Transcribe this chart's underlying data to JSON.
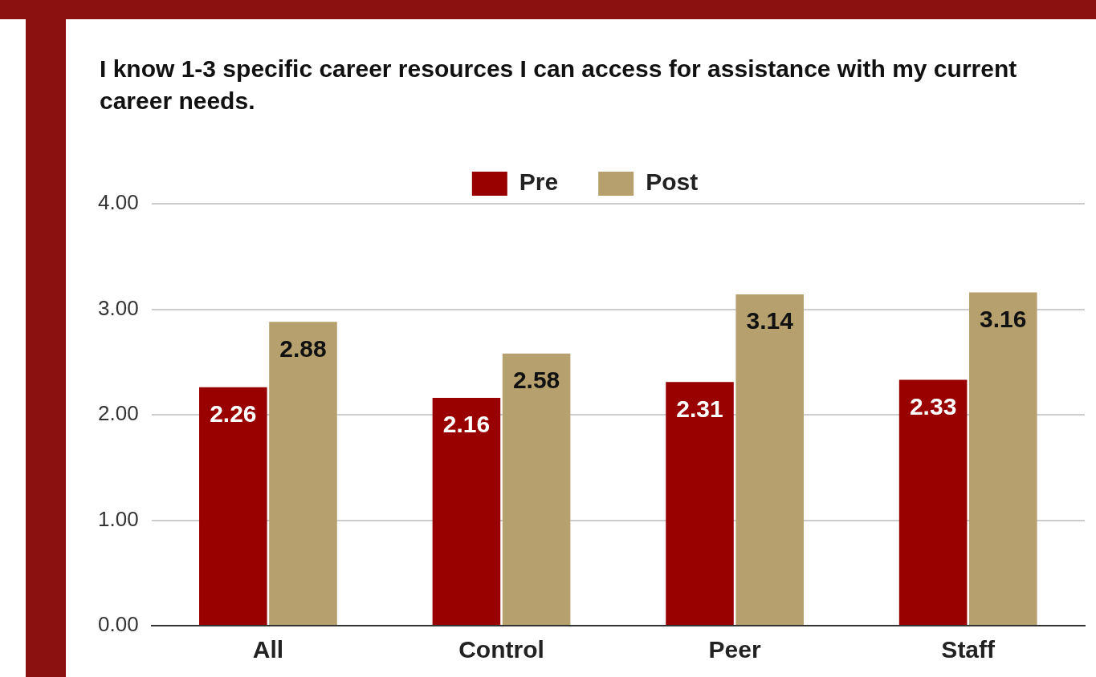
{
  "chart_data": {
    "type": "bar",
    "title": "I know 1-3 specific career resources I can access for assistance with my current career needs.",
    "categories": [
      "All",
      "Control",
      "Peer",
      "Staff"
    ],
    "series": [
      {
        "name": "Pre",
        "color": "#990000",
        "values": [
          2.26,
          2.16,
          2.31,
          2.33
        ]
      },
      {
        "name": "Post",
        "color": "#b5a06e",
        "values": [
          2.88,
          2.58,
          3.14,
          3.16
        ]
      }
    ],
    "ylim": [
      0,
      4
    ],
    "yticks": [
      {
        "value": 0,
        "label": "0.00"
      },
      {
        "value": 1,
        "label": "1.00"
      },
      {
        "value": 2,
        "label": "2.00"
      },
      {
        "value": 3,
        "label": "3.00"
      },
      {
        "value": 4,
        "label": "4.00"
      }
    ],
    "grid": "y",
    "legend": "top",
    "data_labels": true
  }
}
